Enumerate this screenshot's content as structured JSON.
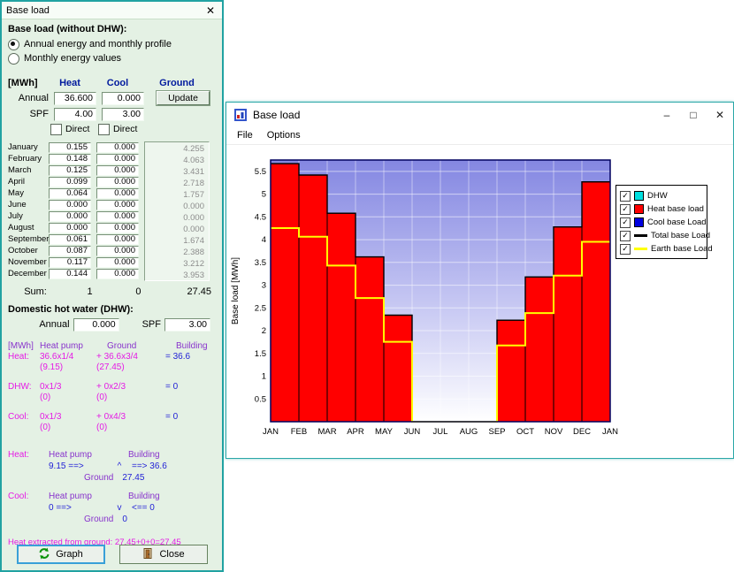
{
  "dialog": {
    "title": "Base load",
    "close_icon": "✕",
    "group_title": "Base load (without DHW):",
    "radio_annual": "Annual energy and monthly profile",
    "radio_monthly": "Monthly energy values",
    "unit_header": "[MWh]",
    "col_heat": "Heat",
    "col_cool": "Cool",
    "col_ground": "Ground",
    "annual_label": "Annual",
    "annual_heat": "36.600",
    "annual_cool": "0.000",
    "update_button": "Update",
    "spf_label": "SPF",
    "spf_heat": "4.00",
    "spf_cool": "3.00",
    "direct_heat_label": "Direct",
    "direct_cool_label": "Direct",
    "months": [
      {
        "name": "January",
        "heat": "0.155",
        "cool": "0.000",
        "ground": "4.255"
      },
      {
        "name": "February",
        "heat": "0.148",
        "cool": "0.000",
        "ground": "4.063"
      },
      {
        "name": "March",
        "heat": "0.125",
        "cool": "0.000",
        "ground": "3.431"
      },
      {
        "name": "April",
        "heat": "0.099",
        "cool": "0.000",
        "ground": "2.718"
      },
      {
        "name": "May",
        "heat": "0.064",
        "cool": "0.000",
        "ground": "1.757"
      },
      {
        "name": "June",
        "heat": "0.000",
        "cool": "0.000",
        "ground": "0.000"
      },
      {
        "name": "July",
        "heat": "0.000",
        "cool": "0.000",
        "ground": "0.000"
      },
      {
        "name": "August",
        "heat": "0.000",
        "cool": "0.000",
        "ground": "0.000"
      },
      {
        "name": "September",
        "heat": "0.061",
        "cool": "0.000",
        "ground": "1.674"
      },
      {
        "name": "October",
        "heat": "0.087",
        "cool": "0.000",
        "ground": "2.388"
      },
      {
        "name": "November",
        "heat": "0.117",
        "cool": "0.000",
        "ground": "3.212"
      },
      {
        "name": "December",
        "heat": "0.144",
        "cool": "0.000",
        "ground": "3.953"
      }
    ],
    "sum_label": "Sum:",
    "sum_heat": "1",
    "sum_cool": "0",
    "sum_ground": "27.45",
    "dhw_title": "Domestic hot water (DHW):",
    "dhw_annual_label": "Annual",
    "dhw_annual_value": "0.000",
    "dhw_spf_label": "SPF",
    "dhw_spf_value": "3.00",
    "calc_table": {
      "header": [
        "[MWh]",
        "Heat pump",
        "Ground",
        "Building"
      ],
      "rows": [
        {
          "label": "Heat:",
          "c1": "36.6x1/4",
          "c2": "+ 36.6x3/4",
          "c3": "=  36.6",
          "s1": "(9.15)",
          "s2": "(27.45)"
        },
        {
          "label": "DHW:",
          "c1": "0x1/3",
          "c2": "+ 0x2/3",
          "c3": "=  0",
          "s1": "(0)",
          "s2": "(0)"
        },
        {
          "label": "Cool:",
          "c1": "0x1/3",
          "c2": "+ 0x4/3",
          "c3": "=  0",
          "s1": "(0)",
          "s2": "(0)"
        }
      ]
    },
    "flow_heat": {
      "label": "Heat:",
      "left_header": "Heat pump",
      "right_header": "Building",
      "left_value": "9.15  ==>",
      "mid": "^",
      "right_value": "==>  36.6",
      "ground_label": "Ground",
      "ground_value": "27.45"
    },
    "flow_cool": {
      "label": "Cool:",
      "left_header": "Heat pump",
      "right_header": "Building",
      "left_value": "0  ==>",
      "mid": "v",
      "right_value": "<==  0",
      "ground_label": "Ground",
      "ground_value": "0"
    },
    "footer_note": "Heat extracted from ground: 27.45+0+0=27.45",
    "graph_button": "Graph",
    "close_button": "Close"
  },
  "chart_window": {
    "title": "Base load",
    "menu": [
      "File",
      "Options"
    ],
    "minimize_icon": "–",
    "maximize_icon": "□",
    "close_icon": "✕",
    "legend": [
      {
        "label": "DHW",
        "color": "#00e0e0",
        "style": "box",
        "checked": true
      },
      {
        "label": "Heat base load",
        "color": "#ff0000",
        "style": "box",
        "checked": true
      },
      {
        "label": "Cool base Load",
        "color": "#0000e0",
        "style": "box",
        "checked": true
      },
      {
        "label": "Total base Load",
        "color": "#000000",
        "style": "line",
        "checked": true
      },
      {
        "label": "Earth base Load",
        "color": "#ffff00",
        "style": "line",
        "checked": true
      }
    ],
    "chart_data": {
      "type": "bar",
      "ylabel": "Base load [MWh]",
      "ylim": [
        0,
        5.75
      ],
      "ytick_step": 0.5,
      "grid": true,
      "legend_position": "right",
      "x_labels": [
        "JAN",
        "FEB",
        "MAR",
        "APR",
        "MAY",
        "JUN",
        "JUL",
        "AUG",
        "SEP",
        "OCT",
        "NOV",
        "DEC",
        "JAN"
      ],
      "series": [
        {
          "name": "Heat base load",
          "type": "bar",
          "color": "#ff0000",
          "values": [
            5.67,
            5.42,
            4.58,
            3.62,
            2.34,
            0,
            0,
            0,
            2.23,
            3.18,
            4.28,
            5.27
          ]
        },
        {
          "name": "Earth base Load",
          "type": "step-line",
          "color": "#ffff00",
          "values": [
            4.255,
            4.063,
            3.431,
            2.718,
            1.757,
            0,
            0,
            0,
            1.674,
            2.388,
            3.212,
            3.953
          ]
        }
      ]
    }
  }
}
